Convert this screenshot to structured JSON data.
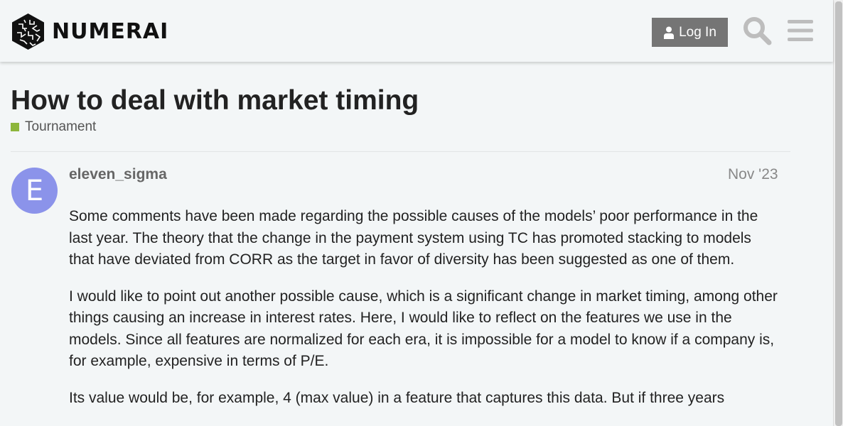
{
  "header": {
    "brand": "NUMERAI",
    "login_label": "Log In"
  },
  "topic": {
    "title": "How to deal with market timing",
    "category": "Tournament",
    "category_color": "#8db63c"
  },
  "post": {
    "avatar_letter": "E",
    "avatar_color": "#8b93ea",
    "username": "eleven_sigma",
    "date": "Nov '23",
    "paragraphs": [
      "Some comments have been made regarding the possible causes of the models’ poor performance in the last year. The theory that the change in the payment system using TC has promoted stacking to models that have deviated from CORR as the target in favor of diversity has been suggested as one of them.",
      "I would like to point out another possible cause, which is a significant change in market timing, among other things causing an increase in interest rates. Here, I would like to reflect on the features we use in the models. Since all features are normalized for each era, it is impossible for a model to know if a company is, for example, expensive in terms of P/E.",
      "Its value would be, for example, 4 (max value) in a feature that captures this data. But if three years"
    ]
  }
}
